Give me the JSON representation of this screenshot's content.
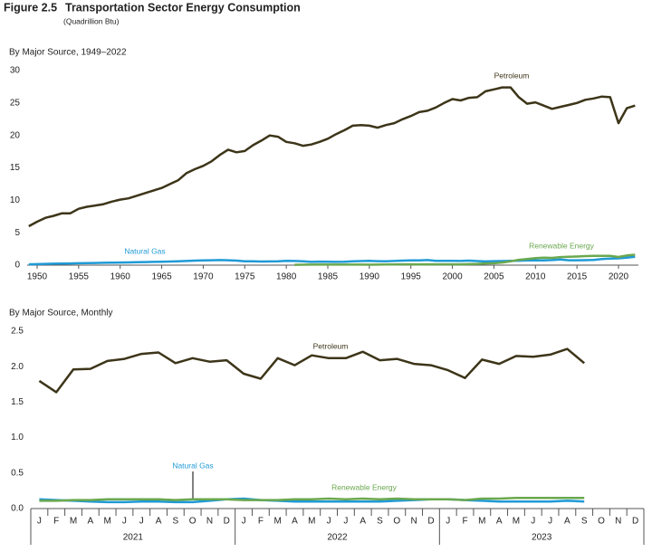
{
  "header": {
    "figure": "Figure 2.5",
    "title": "Transportation Sector Energy Consumption",
    "units": "(Quadrillion Btu)"
  },
  "chart_data": [
    {
      "type": "line",
      "subtitle": "By Major Source, 1949–2022",
      "x": [
        1949,
        1950,
        1951,
        1952,
        1953,
        1954,
        1955,
        1956,
        1957,
        1958,
        1959,
        1960,
        1961,
        1962,
        1963,
        1964,
        1965,
        1966,
        1967,
        1968,
        1969,
        1970,
        1971,
        1972,
        1973,
        1974,
        1975,
        1976,
        1977,
        1978,
        1979,
        1980,
        1981,
        1982,
        1983,
        1984,
        1985,
        1986,
        1987,
        1988,
        1989,
        1990,
        1991,
        1992,
        1993,
        1994,
        1995,
        1996,
        1997,
        1998,
        1999,
        2000,
        2001,
        2002,
        2003,
        2004,
        2005,
        2006,
        2007,
        2008,
        2009,
        2010,
        2011,
        2012,
        2013,
        2014,
        2015,
        2016,
        2017,
        2018,
        2019,
        2020,
        2021,
        2022
      ],
      "series": [
        {
          "name": "Petroleum",
          "color": "#3d3519",
          "values": [
            6.0,
            6.7,
            7.3,
            7.6,
            8.0,
            8.0,
            8.7,
            9.0,
            9.2,
            9.4,
            9.8,
            10.1,
            10.3,
            10.7,
            11.1,
            11.5,
            11.9,
            12.5,
            13.1,
            14.2,
            14.8,
            15.3,
            16.0,
            17.0,
            17.8,
            17.4,
            17.6,
            18.5,
            19.2,
            20.0,
            19.8,
            19.0,
            18.8,
            18.4,
            18.6,
            19.0,
            19.5,
            20.2,
            20.8,
            21.5,
            21.6,
            21.5,
            21.2,
            21.6,
            21.9,
            22.5,
            23.0,
            23.6,
            23.8,
            24.3,
            25.0,
            25.6,
            25.4,
            25.8,
            25.9,
            26.8,
            27.1,
            27.4,
            27.4,
            25.9,
            24.9,
            25.1,
            24.6,
            24.1,
            24.4,
            24.7,
            25.0,
            25.5,
            25.7,
            26.0,
            25.9,
            21.9,
            24.2,
            24.6
          ]
        },
        {
          "name": "Natural Gas",
          "color": "#1f9ad6",
          "values": [
            0.13,
            0.15,
            0.2,
            0.22,
            0.25,
            0.27,
            0.3,
            0.32,
            0.34,
            0.36,
            0.38,
            0.4,
            0.42,
            0.44,
            0.47,
            0.5,
            0.52,
            0.56,
            0.6,
            0.64,
            0.7,
            0.74,
            0.76,
            0.78,
            0.75,
            0.7,
            0.6,
            0.58,
            0.56,
            0.57,
            0.6,
            0.65,
            0.64,
            0.6,
            0.5,
            0.54,
            0.52,
            0.5,
            0.52,
            0.6,
            0.63,
            0.66,
            0.62,
            0.6,
            0.64,
            0.7,
            0.72,
            0.74,
            0.78,
            0.65,
            0.67,
            0.66,
            0.64,
            0.7,
            0.63,
            0.57,
            0.62,
            0.63,
            0.66,
            0.69,
            0.72,
            0.72,
            0.74,
            0.78,
            0.87,
            0.76,
            0.75,
            0.77,
            0.8,
            0.95,
            1.0,
            1.05,
            1.15,
            1.3
          ]
        },
        {
          "name": "Renewable Energy",
          "color": "#6aa84f",
          "values": [
            null,
            null,
            null,
            null,
            null,
            null,
            null,
            null,
            null,
            null,
            null,
            null,
            null,
            null,
            null,
            null,
            null,
            null,
            null,
            null,
            null,
            null,
            null,
            null,
            null,
            null,
            null,
            null,
            null,
            null,
            null,
            null,
            0.06,
            0.07,
            0.08,
            0.08,
            0.09,
            0.09,
            0.09,
            0.09,
            0.09,
            0.07,
            0.08,
            0.1,
            0.11,
            0.12,
            0.12,
            0.11,
            0.12,
            0.12,
            0.12,
            0.13,
            0.13,
            0.15,
            0.2,
            0.26,
            0.3,
            0.4,
            0.58,
            0.82,
            0.93,
            1.08,
            1.14,
            1.12,
            1.24,
            1.3,
            1.33,
            1.4,
            1.43,
            1.44,
            1.43,
            1.25,
            1.5,
            1.6
          ]
        }
      ],
      "xlim": [
        1948.8,
        2022.4
      ],
      "xticks": [
        1950,
        1955,
        1960,
        1965,
        1970,
        1975,
        1980,
        1985,
        1990,
        1995,
        2000,
        2005,
        2010,
        2015,
        2020
      ],
      "ylim": [
        0,
        30
      ],
      "yticks": [
        0,
        5,
        10,
        15,
        20,
        25,
        30
      ]
    },
    {
      "type": "line",
      "subtitle": "By Major Source, Monthly",
      "categories": [
        "J",
        "F",
        "M",
        "A",
        "M",
        "J",
        "J",
        "A",
        "S",
        "O",
        "N",
        "D",
        "J",
        "F",
        "M",
        "A",
        "M",
        "J",
        "J",
        "A",
        "S",
        "O",
        "N",
        "D",
        "J",
        "F",
        "M",
        "A",
        "M",
        "J",
        "J",
        "A",
        "S",
        "O",
        "N",
        "D"
      ],
      "years": [
        "2021",
        "2022",
        "2023"
      ],
      "series": [
        {
          "name": "Petroleum",
          "color": "#3d3519",
          "values": [
            1.8,
            1.64,
            1.96,
            1.97,
            2.08,
            2.11,
            2.18,
            2.2,
            2.05,
            2.12,
            2.07,
            2.09,
            1.9,
            1.83,
            2.12,
            2.02,
            2.16,
            2.12,
            2.12,
            2.21,
            2.09,
            2.11,
            2.04,
            2.02,
            1.95,
            1.84,
            2.1,
            2.04,
            2.15,
            2.14,
            2.17,
            2.25,
            2.05,
            null,
            null,
            null
          ]
        },
        {
          "name": "Natural Gas",
          "color": "#1f9ad6",
          "values": [
            0.13,
            0.12,
            0.11,
            0.1,
            0.09,
            0.09,
            0.1,
            0.1,
            0.09,
            0.09,
            0.11,
            0.13,
            0.14,
            0.12,
            0.11,
            0.1,
            0.1,
            0.1,
            0.1,
            0.1,
            0.1,
            0.11,
            0.12,
            0.13,
            0.13,
            0.12,
            0.11,
            0.1,
            0.1,
            0.1,
            0.1,
            0.11,
            0.1,
            null,
            null,
            null
          ]
        },
        {
          "name": "Renewable Energy",
          "color": "#6aa84f",
          "values": [
            0.11,
            0.11,
            0.12,
            0.12,
            0.13,
            0.13,
            0.13,
            0.13,
            0.12,
            0.13,
            0.13,
            0.13,
            0.12,
            0.12,
            0.12,
            0.13,
            0.13,
            0.14,
            0.13,
            0.14,
            0.13,
            0.14,
            0.13,
            0.13,
            0.13,
            0.12,
            0.14,
            0.14,
            0.15,
            0.15,
            0.15,
            0.15,
            0.15,
            null,
            null,
            null
          ]
        }
      ],
      "ylim": [
        0,
        2.5
      ],
      "yticks": [
        {
          "value": 0,
          "label": "0.0"
        },
        0.5,
        {
          "value": 1,
          "label": "1.0"
        },
        1.5,
        {
          "value": 2,
          "label": "2.0"
        },
        2.5
      ]
    }
  ]
}
